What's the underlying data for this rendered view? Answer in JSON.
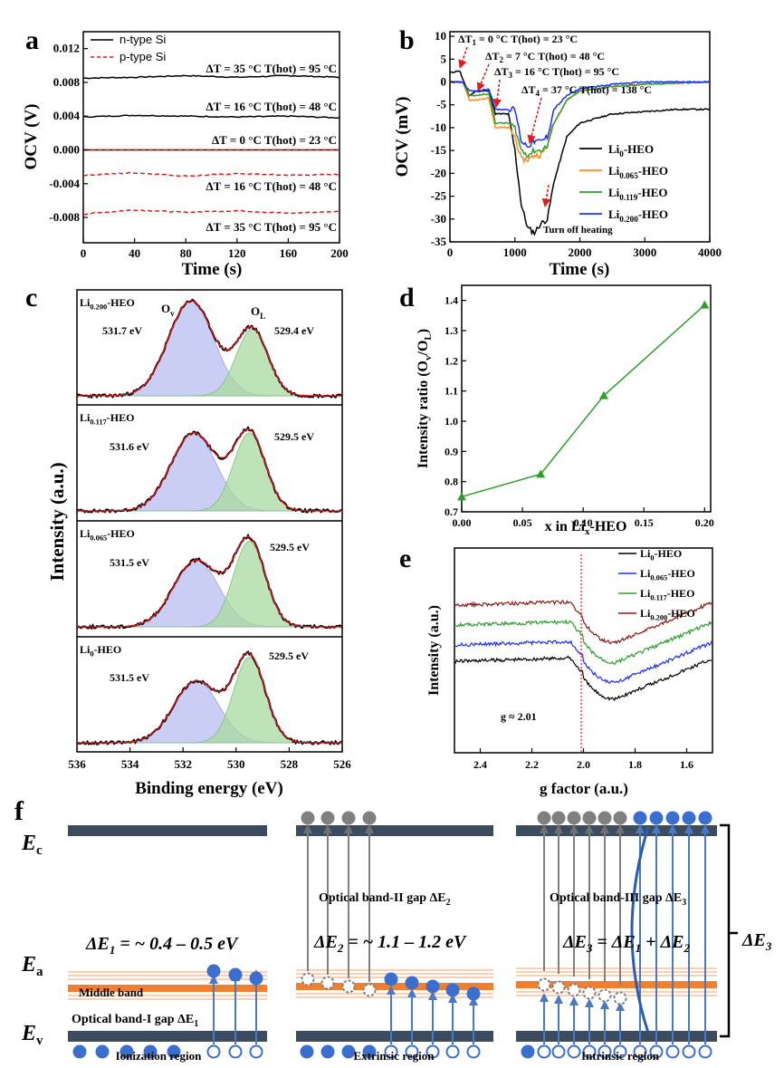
{
  "colors": {
    "black": "#000000",
    "red": "#e41a1c",
    "orange": "#ff8c1a",
    "green": "#2e9e2e",
    "blue": "#1f2eff",
    "darkred": "#8b1a1a",
    "band": "#3c4b5e",
    "midband": "#f08030",
    "arrowblue": "#4a78c8",
    "grayarrow": "#808080",
    "fillblue": "#b9bdf0",
    "fillgreen": "#a9d9a0",
    "dot": "#3a6fcf",
    "graydot": "#808080"
  },
  "panel_a": {
    "label": "a",
    "legend": [
      "n-type Si",
      "p-type Si"
    ],
    "annotations": [
      "ΔT = 35 °C  T(hot) = 95 °C",
      "ΔT = 16 °C  T(hot) = 48 °C",
      "ΔT = 0 °C  T(hot) = 23 °C",
      "ΔT = 16 °C  T(hot) = 48 °C",
      "ΔT = 35 °C  T(hot) = 95 °C"
    ],
    "xticks": [
      "0",
      "40",
      "80",
      "120",
      "160",
      "200"
    ],
    "yticks": [
      "0.012",
      "0.008",
      "0.004",
      "0.000",
      "-0.004",
      "-0.008"
    ]
  },
  "panel_b": {
    "label": "b",
    "annotations": [
      "ΔT",
      "1",
      " = 0 °C  T(hot) = 23 °C",
      "ΔT",
      "2",
      " = 7 °C  T(hot) = 48 °C",
      "ΔT",
      "3",
      " = 16 °C  T(hot) = 95 °C",
      "ΔT",
      "4",
      " = 37 °C  T(hot) = 138 °C",
      "Turn off heating"
    ],
    "legend": [
      {
        "base": "Li",
        "sub": "0",
        "tail": "-HEO"
      },
      {
        "base": "Li",
        "sub": "0.065",
        "tail": "-HEO"
      },
      {
        "base": "Li",
        "sub": "0.119",
        "tail": "-HEO"
      },
      {
        "base": "Li",
        "sub": "0.200",
        "tail": "-HEO"
      }
    ],
    "xticks": [
      "0",
      "1000",
      "2000",
      "3000",
      "4000"
    ],
    "yticks": [
      "10",
      "5",
      "0",
      "-5",
      "-10",
      "-15",
      "-20",
      "-25",
      "-30",
      "-35"
    ]
  },
  "panel_c": {
    "label": "c",
    "subpanels": [
      {
        "base": "Li",
        "sub": "0.200",
        "tail": "-HEO",
        "ov": "531.7 eV",
        "ol": "529.4 eV",
        "ovlabel": "O",
        "ovsub": "v",
        "ollabel": "O",
        "olsub": "L"
      },
      {
        "base": "Li",
        "sub": "0.117",
        "tail": "-HEO",
        "ov": "531.6 eV",
        "ol": "529.5 eV"
      },
      {
        "base": "Li",
        "sub": "0.065",
        "tail": "-HEO",
        "ov": "531.5 eV",
        "ol": "529.5 eV"
      },
      {
        "base": "Li",
        "sub": "0",
        "tail": "-HEO",
        "ov": "531.5 eV",
        "ol": "529.5 eV"
      }
    ],
    "xticks": [
      "536",
      "534",
      "532",
      "530",
      "528",
      "526"
    ]
  },
  "panel_d": {
    "label": "d",
    "xticks": [
      "0.00",
      "0.05",
      "0.10",
      "0.15",
      "0.20"
    ],
    "yticks": [
      "0.7",
      "0.8",
      "0.9",
      "1.0",
      "1.1",
      "1.2",
      "1.3",
      "1.4"
    ]
  },
  "panel_e": {
    "label": "e",
    "legend": [
      {
        "base": "Li",
        "sub": "0",
        "tail": "-HEO"
      },
      {
        "base": "Li",
        "sub": "0.065",
        "tail": "-HEO"
      },
      {
        "base": "Li",
        "sub": "0.117",
        "tail": "-HEO"
      },
      {
        "base": "Li",
        "sub": "0.200",
        "tail": "-HEO"
      }
    ],
    "gmark": "g ≈ 2.01",
    "xticks": [
      "2.4",
      "2.2",
      "2.0",
      "1.8",
      "1.6"
    ]
  },
  "panel_f": {
    "label": "f",
    "ec": "E",
    "ec_sub": "c",
    "ea": "E",
    "ea_sub": "a",
    "ev": "E",
    "ev_sub": "v",
    "middle_band": "Middle band",
    "gap1": "Optical band-I gap ΔE",
    "gap1_sub": "1",
    "gap2": "Optical band-II gap ΔE",
    "gap2_sub": "2",
    "gap3": "Optical band-III gap ΔE",
    "gap3_sub": "3",
    "eq1": "ΔE",
    "eq1_sub": "1",
    "eq1_tail": " = ~ 0.4 – 0.5 eV",
    "eq2": "ΔE",
    "eq2_sub": "2",
    "eq2_tail": " = ~ 1.1 – 1.2 eV",
    "eq3": "ΔE",
    "eq3_sub": "3",
    "eq3_mid": " = ΔE",
    "eq3_sub2": "1",
    "eq3_mid2": " + ΔE",
    "eq3_sub3": "2",
    "brace_label": "ΔE",
    "brace_sub": "3",
    "regions": [
      "Ionization region",
      "Extrinsic region",
      "Intrinsic region"
    ]
  },
  "chart_data": [
    {
      "panel": "a",
      "type": "line",
      "title": "",
      "xlabel": "Time (s)",
      "ylabel": "OCV (V)",
      "xlim": [
        0,
        200
      ],
      "ylim": [
        -0.011,
        0.014
      ],
      "series": [
        {
          "name": "n-type Si",
          "x": [
            0,
            40,
            80,
            120,
            160,
            200
          ],
          "y": [
            0.0085,
            0.0086,
            0.0088,
            0.0086,
            0.0088,
            0.0086
          ]
        },
        {
          "name": "n-type Si",
          "x": [
            0,
            40,
            80,
            120,
            160,
            200
          ],
          "y": [
            0.0039,
            0.0041,
            0.004,
            0.0039,
            0.004,
            0.0038
          ]
        },
        {
          "name": "n-type Si",
          "x": [
            0,
            200
          ],
          "y": [
            0.0,
            0.0
          ]
        },
        {
          "name": "p-type Si",
          "x": [
            0,
            200
          ],
          "y": [
            0.0,
            0.0
          ]
        },
        {
          "name": "p-type Si",
          "x": [
            0,
            40,
            80,
            120,
            160,
            200
          ],
          "y": [
            -0.003,
            -0.0027,
            -0.0031,
            -0.0028,
            -0.003,
            -0.0029
          ]
        },
        {
          "name": "p-type Si",
          "x": [
            0,
            40,
            80,
            120,
            160,
            200
          ],
          "y": [
            -0.0076,
            -0.0071,
            -0.0074,
            -0.0072,
            -0.0075,
            -0.0073
          ]
        }
      ]
    },
    {
      "panel": "b",
      "type": "line",
      "title": "",
      "xlabel": "Time (s)",
      "ylabel": "OCV (mV)",
      "xlim": [
        0,
        4000
      ],
      "ylim": [
        -35,
        11
      ],
      "series": [
        {
          "name": "Li0-HEO",
          "x": [
            0,
            150,
            200,
            300,
            400,
            600,
            700,
            900,
            1000,
            1100,
            1200,
            1300,
            1400,
            1500,
            1600,
            1800,
            2000,
            2500,
            3000,
            3500,
            4000
          ],
          "y": [
            2,
            2.5,
            0.5,
            -3,
            -2,
            -2,
            -7,
            -7,
            -15,
            -27,
            -32,
            -33,
            -31,
            -30,
            -22,
            -12,
            -9,
            -7,
            -6.5,
            -6,
            -6
          ]
        },
        {
          "name": "Li0.065-HEO",
          "x": [
            0,
            200,
            300,
            400,
            600,
            700,
            900,
            1000,
            1100,
            1200,
            1300,
            1400,
            1500,
            1600,
            1800,
            2000,
            2500,
            3000,
            4000
          ],
          "y": [
            0,
            0,
            -4,
            -4,
            -3.5,
            -10,
            -10,
            -12,
            -17,
            -17,
            -16,
            -16,
            -14,
            -9,
            -4,
            -2,
            -1,
            -0.5,
            0
          ]
        },
        {
          "name": "Li0.119-HEO",
          "x": [
            0,
            200,
            300,
            400,
            600,
            700,
            900,
            1000,
            1100,
            1200,
            1300,
            1400,
            1500,
            1600,
            1800,
            2000,
            2500,
            3000,
            4000
          ],
          "y": [
            0,
            0,
            -3,
            -3,
            -2.5,
            -9,
            -9,
            -10,
            -15,
            -16,
            -15,
            -15,
            -14,
            -9,
            -4,
            -2,
            -1,
            -0.5,
            0
          ]
        },
        {
          "name": "Li0.200-HEO",
          "x": [
            0,
            200,
            300,
            400,
            600,
            700,
            900,
            1000,
            1100,
            1200,
            1300,
            1400,
            1500,
            1600,
            1800,
            2000,
            2500,
            3000,
            4000
          ],
          "y": [
            0,
            0,
            -2,
            -2,
            -1.5,
            -6,
            -6,
            -6,
            -13,
            -14,
            -13,
            -13,
            -12,
            -6,
            -3,
            -1.5,
            -0.5,
            0,
            0
          ]
        }
      ]
    },
    {
      "panel": "c",
      "type": "line",
      "title": "",
      "xlabel": "Binding energy (eV)",
      "ylabel": "Intensity (a.u.)",
      "xlim": [
        536,
        526
      ],
      "series": [
        {
          "name": "Li0.200-HEO",
          "ov_center": 531.7,
          "ol_center": 529.4,
          "ov_height": 1.0,
          "ol_height": 0.7
        },
        {
          "name": "Li0.117-HEO",
          "ov_center": 531.6,
          "ol_center": 529.5,
          "ov_height": 0.82,
          "ol_height": 0.82
        },
        {
          "name": "Li0.065-HEO",
          "ov_center": 531.5,
          "ol_center": 529.5,
          "ov_height": 0.7,
          "ol_height": 0.9
        },
        {
          "name": "Li0-HEO",
          "ov_center": 531.5,
          "ol_center": 529.5,
          "ov_height": 0.65,
          "ol_height": 0.9
        }
      ]
    },
    {
      "panel": "d",
      "type": "line",
      "title": "",
      "xlabel": "x in Lix-HEO",
      "ylabel": "Intensity ratio (Ov/OL)",
      "xlim": [
        0,
        0.205
      ],
      "ylim": [
        0.7,
        1.45
      ],
      "x": [
        0.0,
        0.065,
        0.117,
        0.2
      ],
      "y": [
        0.75,
        0.825,
        1.085,
        1.385
      ]
    },
    {
      "panel": "e",
      "type": "line",
      "title": "",
      "xlabel": "g factor (a.u.)",
      "ylabel": "Intensity (a.u.)",
      "xlim": [
        2.5,
        1.5
      ],
      "series": [
        {
          "name": "Li0-HEO"
        },
        {
          "name": "Li0.065-HEO"
        },
        {
          "name": "Li0.117-HEO"
        },
        {
          "name": "Li0.200-HEO"
        }
      ],
      "annotation": "g ≈ 2.01",
      "marker_x": 2.01
    }
  ]
}
